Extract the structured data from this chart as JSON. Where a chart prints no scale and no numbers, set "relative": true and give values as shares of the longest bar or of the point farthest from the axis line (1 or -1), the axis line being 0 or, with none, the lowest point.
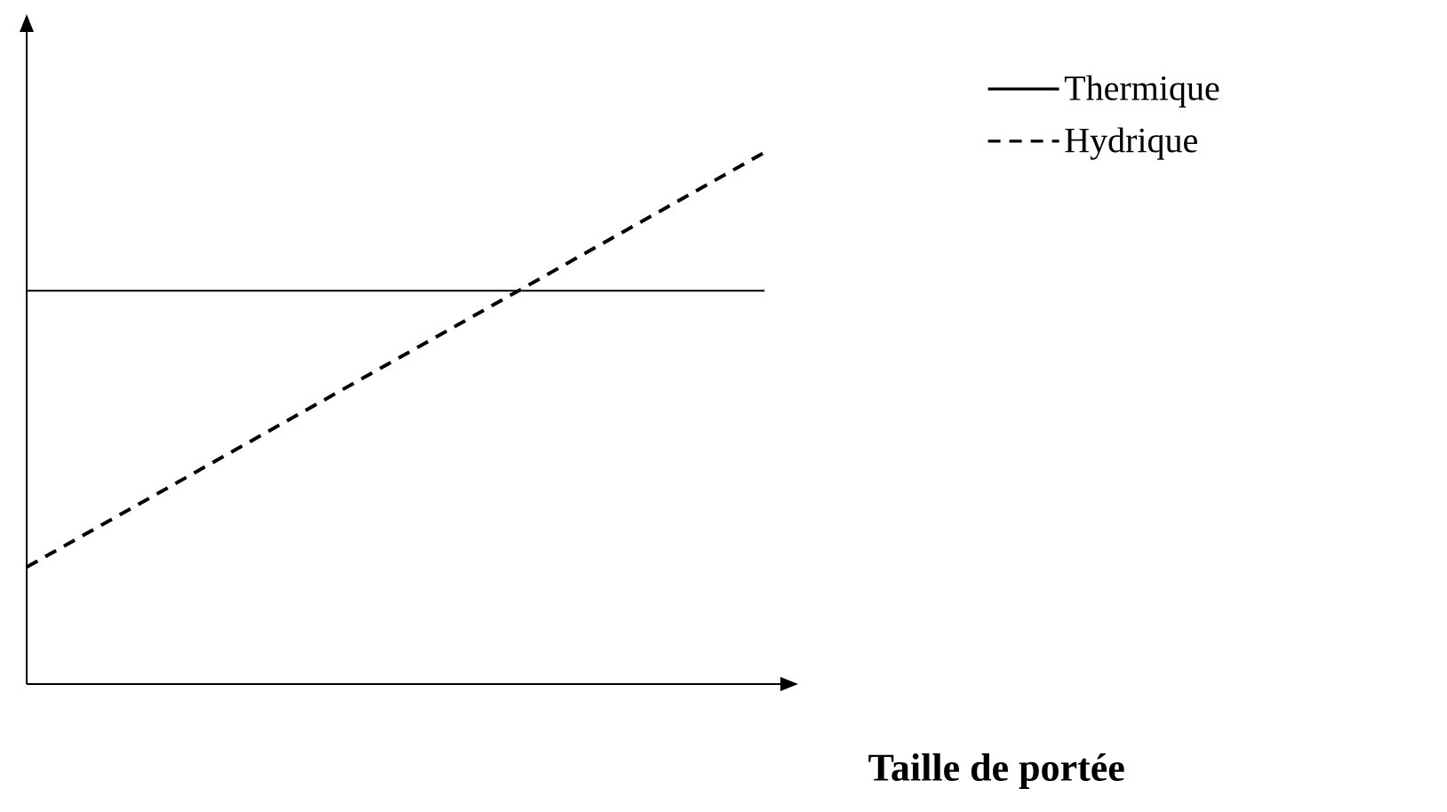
{
  "chart_data": {
    "type": "line",
    "relative": true,
    "xlabel": "**Taille de portée**",
    "categories": [
      null,
      null
    ],
    "legend": "top right",
    "series": [
      {
        "name": "Thermique",
        "color": "#000000",
        "line_style": "solid",
        "values": [
          0.74,
          0.74
        ]
      },
      {
        "name": "Hydrique",
        "color": "#000000",
        "line_style": "dashed",
        "values": [
          0.22,
          1
        ]
      }
    ]
  }
}
